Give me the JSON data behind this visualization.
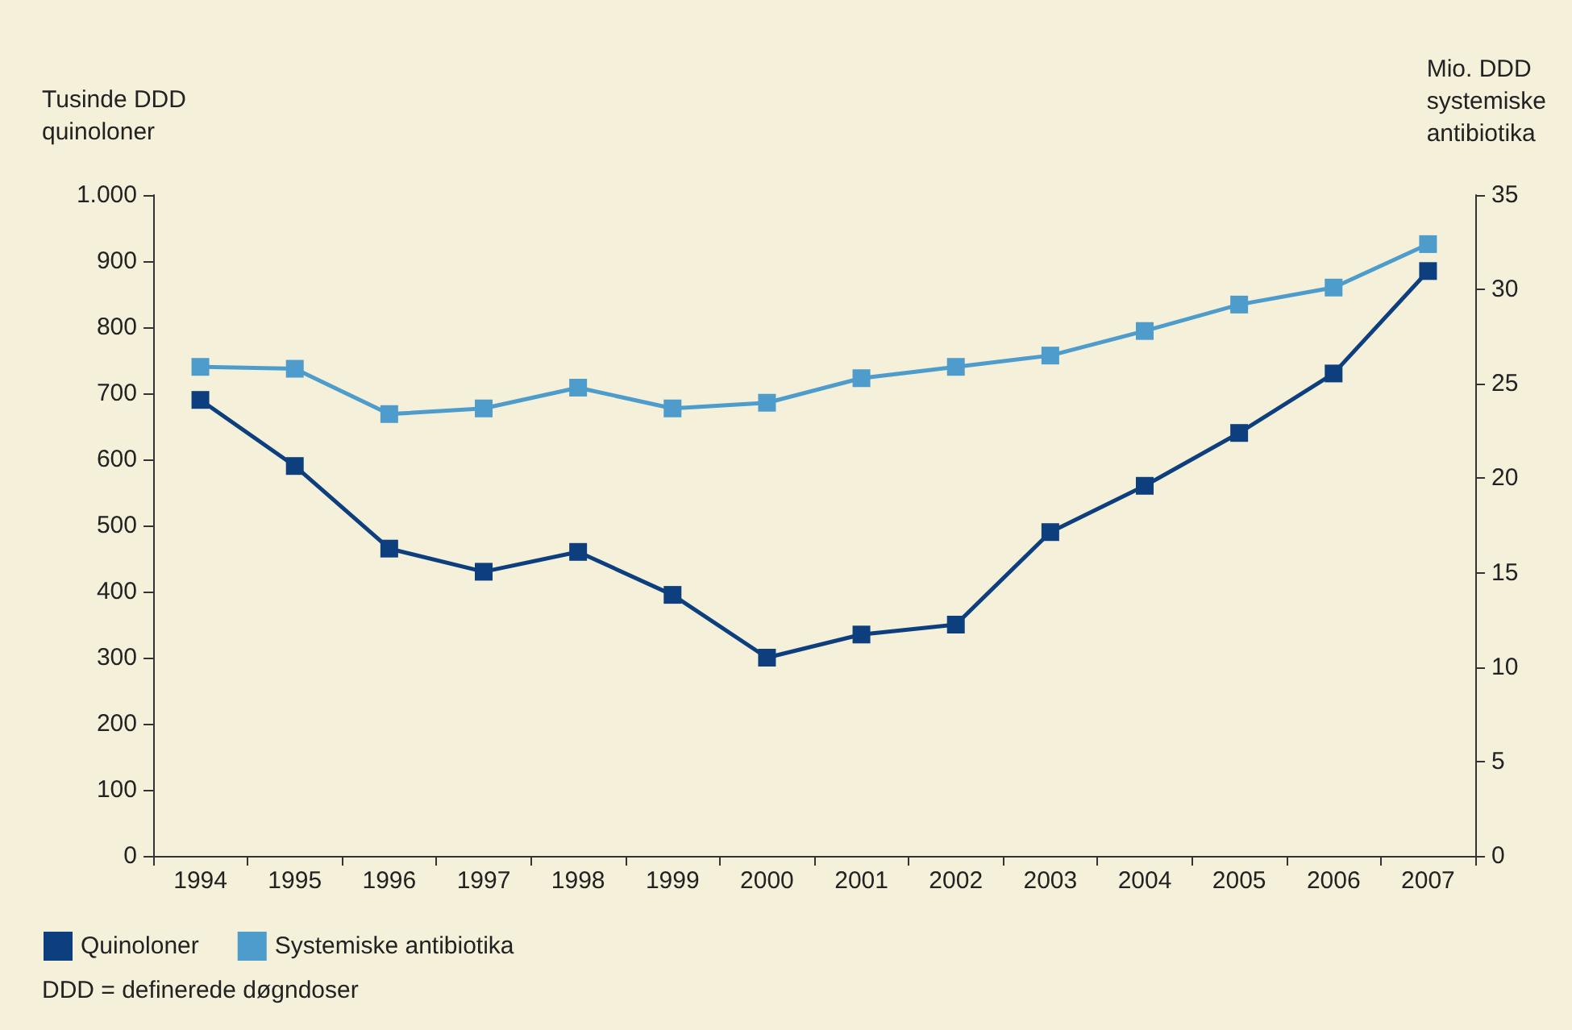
{
  "chart_data": {
    "type": "line",
    "ylabel": "Tusinde DDD\nquinoloner",
    "y2label": "Mio. DDD\nsystemiske\nantibiotika",
    "categories": [
      "1994",
      "1995",
      "1996",
      "1997",
      "1998",
      "1999",
      "2000",
      "2001",
      "2002",
      "2003",
      "2004",
      "2005",
      "2006",
      "2007"
    ],
    "series": [
      {
        "name": "Quinoloner",
        "color": "#0d3f7f",
        "values": [
          690,
          590,
          465,
          430,
          460,
          395,
          300,
          335,
          350,
          490,
          560,
          640,
          730,
          885
        ]
      },
      {
        "name": "Systemiske antibiotika",
        "color": "#4d9ccc",
        "axis": "y2",
        "values": [
          25.9,
          25.8,
          23.4,
          23.7,
          24.8,
          23.7,
          24.0,
          25.3,
          25.9,
          26.5,
          27.8,
          29.2,
          30.1,
          32.4
        ]
      }
    ],
    "ylim": [
      0,
      1000
    ],
    "yticks": [
      0,
      100,
      200,
      300,
      400,
      500,
      600,
      700,
      800,
      900,
      {
        "value": 1000,
        "label": "1.000"
      }
    ],
    "y2lim": [
      0,
      35
    ],
    "y2ticks": [
      0,
      5,
      10,
      15,
      20,
      25,
      30,
      35
    ],
    "marker": "square",
    "grid": false,
    "legend": "bottom left",
    "annotations": [
      "DDD = definerede døgndoser"
    ]
  }
}
